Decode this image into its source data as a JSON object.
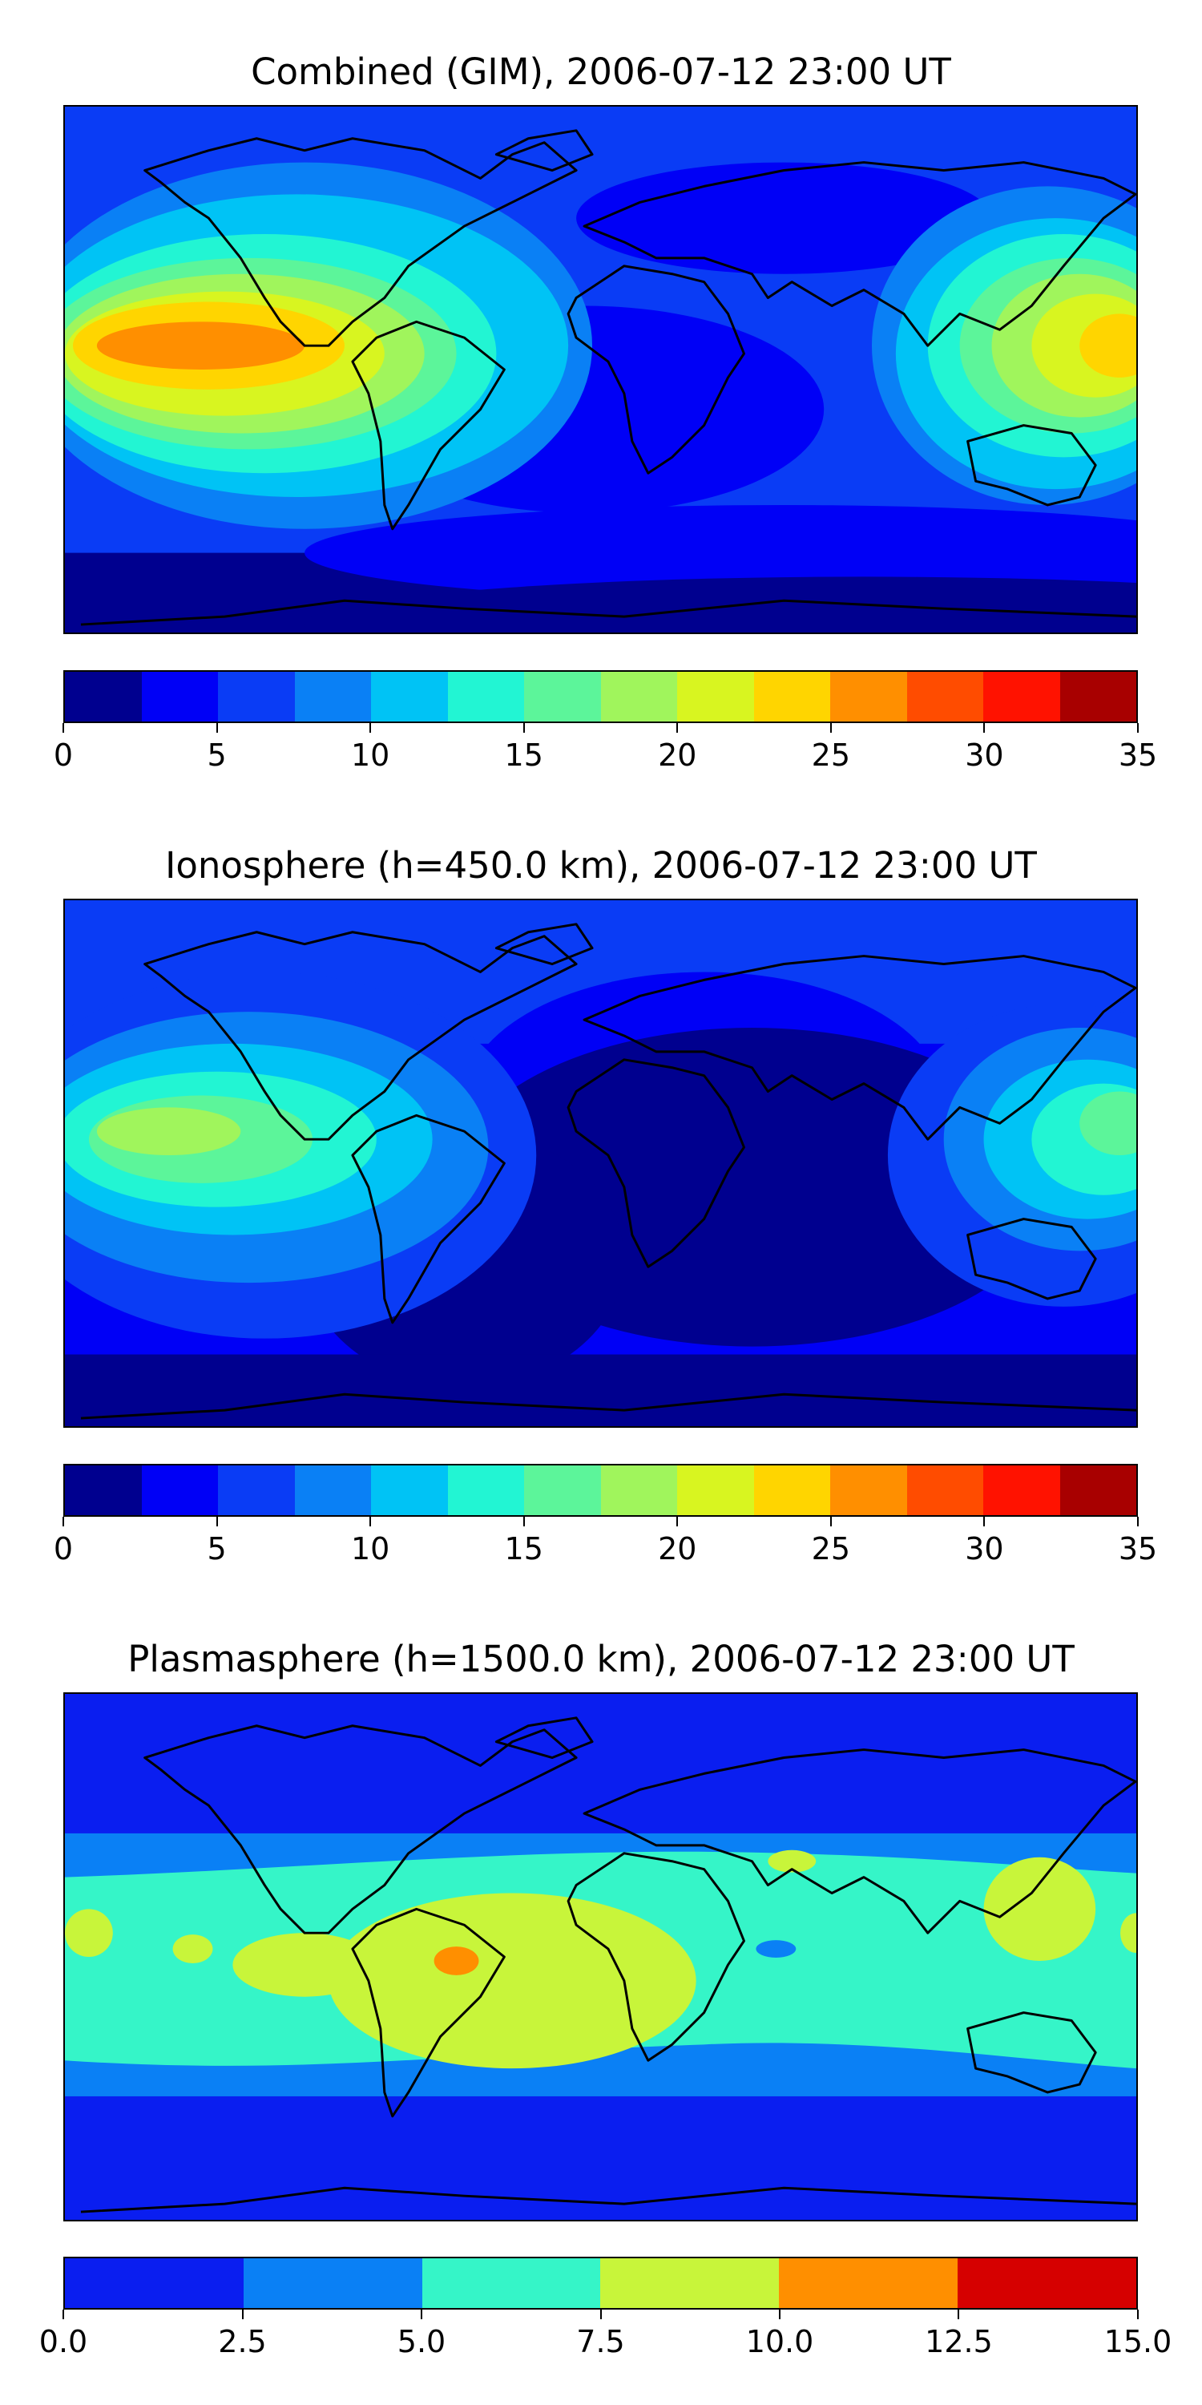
{
  "panels": [
    {
      "title": "Combined (GIM), 2006-07-12 23:00 UT",
      "colorbar": {
        "colors": [
          "#00008f",
          "#0000f6",
          "#0a3cf5",
          "#0a80f5",
          "#00c3f5",
          "#22f5d3",
          "#5cf59a",
          "#a0f55c",
          "#d8f520",
          "#ffd500",
          "#ff8f00",
          "#ff4c00",
          "#ff1200",
          "#a80000"
        ],
        "tick_labels": [
          "0",
          "5",
          "10",
          "15",
          "20",
          "25",
          "30",
          "35"
        ]
      }
    },
    {
      "title": "Ionosphere  (h=450.0 km), 2006-07-12 23:00 UT",
      "colorbar": {
        "colors": [
          "#00008f",
          "#0000f6",
          "#0a3cf5",
          "#0a80f5",
          "#00c3f5",
          "#22f5d3",
          "#5cf59a",
          "#a0f55c",
          "#d8f520",
          "#ffd500",
          "#ff8f00",
          "#ff4c00",
          "#ff1200",
          "#a80000"
        ],
        "tick_labels": [
          "0",
          "5",
          "10",
          "15",
          "20",
          "25",
          "30",
          "35"
        ]
      }
    },
    {
      "title": "Plasmasphere (h=1500.0 km), 2006-07-12 23:00 UT",
      "colorbar": {
        "colors": [
          "#0a1ef0",
          "#0a80f5",
          "#35f5c8",
          "#c8f53a",
          "#ff8f00",
          "#d60000"
        ],
        "tick_labels": [
          "0.0",
          "2.5",
          "5.0",
          "7.5",
          "10.0",
          "12.5",
          "15.0"
        ]
      }
    }
  ]
}
